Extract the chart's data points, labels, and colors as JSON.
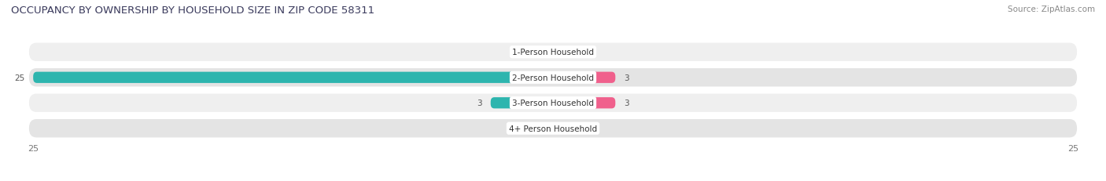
{
  "title": "OCCUPANCY BY OWNERSHIP BY HOUSEHOLD SIZE IN ZIP CODE 58311",
  "source": "Source: ZipAtlas.com",
  "categories": [
    "1-Person Household",
    "2-Person Household",
    "3-Person Household",
    "4+ Person Household"
  ],
  "owner_values": [
    0,
    25,
    3,
    0
  ],
  "renter_values": [
    0,
    3,
    3,
    0
  ],
  "owner_color": "#2db5ae",
  "renter_color": "#f0608c",
  "owner_color_light": "#99d9d6",
  "renter_color_light": "#f5b8cc",
  "row_bg_even": "#efefef",
  "row_bg_odd": "#e4e4e4",
  "xlim": 25,
  "title_fontsize": 9.5,
  "label_fontsize": 7.5,
  "tick_fontsize": 8,
  "legend_fontsize": 8,
  "source_fontsize": 7.5
}
